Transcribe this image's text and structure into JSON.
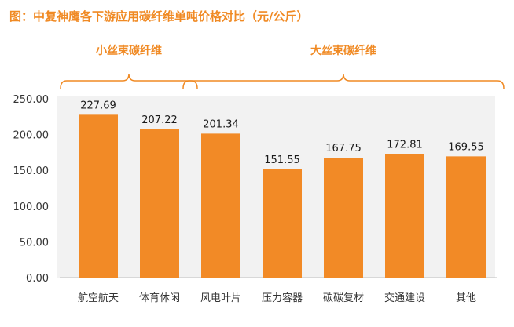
{
  "chart_data": {
    "type": "bar",
    "title": "图：中复神鹰各下游应用碳纤维单吨价格对比（元/公斤）",
    "categories": [
      "航空航天",
      "体育休闲",
      "风电叶片",
      "压力容器",
      "碳碳复材",
      "交通建设",
      "其他"
    ],
    "values": [
      227.69,
      207.22,
      201.34,
      151.55,
      167.75,
      172.81,
      169.55
    ],
    "value_labels": [
      "227.69",
      "207.22",
      "201.34",
      "151.55",
      "167.75",
      "172.81",
      "169.55"
    ],
    "yticks": [
      "0.00",
      "50.00",
      "100.00",
      "150.00",
      "200.00",
      "250.00"
    ],
    "ylim": [
      0,
      250
    ],
    "xlabel": "",
    "ylabel": "",
    "bar_color": "#f28a26",
    "grid": false,
    "groups": [
      {
        "label": "小丝束碳纤维",
        "from": 0,
        "to": 1
      },
      {
        "label": "大丝束碳纤维",
        "from": 2,
        "to": 6
      }
    ]
  },
  "colors": {
    "accent": "#f08a24",
    "plot_background": "#f2f2f2"
  }
}
